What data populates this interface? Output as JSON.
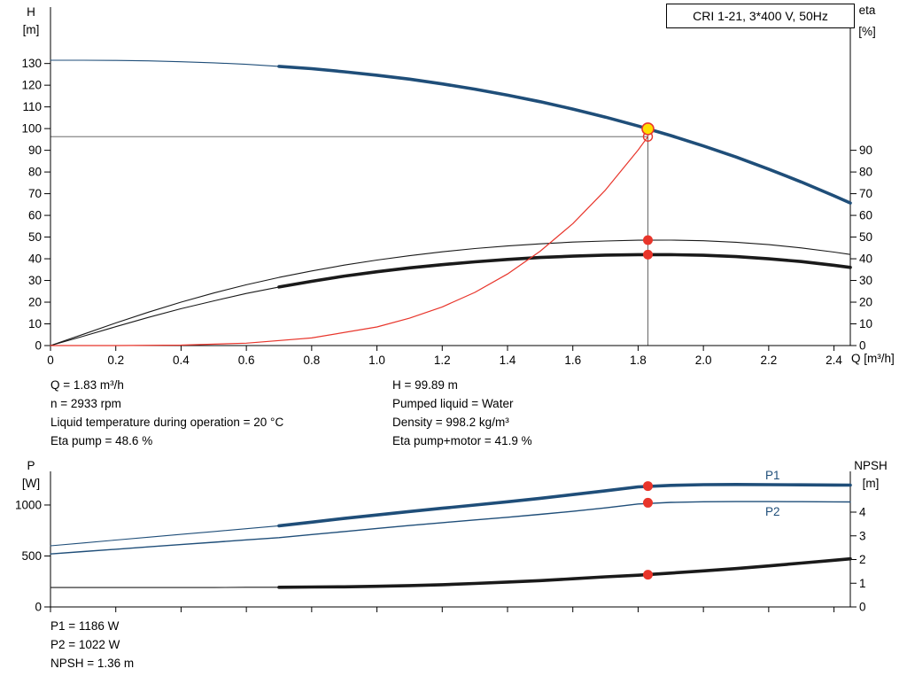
{
  "axis_labels": {
    "h": "H",
    "h_unit": "[m]",
    "eta": "eta",
    "eta_unit": "[%]",
    "q": "Q [m³/h]",
    "p": "P",
    "p_unit": "[W]",
    "npsh": "NPSH",
    "npsh_unit": "[m]"
  },
  "operating_point": {
    "q_label": "Q = 1.83 m³/h",
    "n_label": "n = 2933 rpm",
    "temp_label": "Liquid temperature during operation = 20 °C",
    "eta_pump_label": "Eta pump = 48.6 %",
    "h_label": "H = 99.89 m",
    "liquid_label": "Pumped liquid = Water",
    "density_label": "Density = 998.2 kg/m³",
    "eta_total_label": "Eta pump+motor = 41.9 %",
    "p1_label": "P1 = 1186 W",
    "p2_label": "P2 = 1022 W",
    "npsh_label": "NPSH = 1.36 m"
  },
  "duty_point": {
    "q": 1.83,
    "h": 99.89,
    "eta_pump": 48.6,
    "eta_total": 41.9,
    "p1": 1186,
    "p2": 1022,
    "npsh": 1.36,
    "n_rpm": 2933,
    "density": 998.2,
    "temp_c": 20,
    "liquid": "Water"
  },
  "chart_data": [
    {
      "type": "line",
      "name": "qh-eta-chart",
      "title": "CRI 1-21, 3*400 V, 50Hz",
      "xlabel": "Q [m³/h]",
      "ylabel_left": "H [m]",
      "ylabel_right": "eta [%]",
      "xlim": [
        0,
        2.45
      ],
      "ylim_left": [
        0,
        156
      ],
      "ylim_right": [
        0,
        156
      ],
      "grid": false,
      "x_ticks": [
        0,
        0.2,
        0.4,
        0.6,
        0.8,
        1.0,
        1.2,
        1.4,
        1.6,
        1.8,
        2.0,
        2.2,
        2.4
      ],
      "x_tick_labels": [
        "0",
        "0.2",
        "0.4",
        "0.6",
        "0.8",
        "1.0",
        "1.2",
        "1.4",
        "1.6",
        "1.8",
        "2.0",
        "2.2",
        "2.4"
      ],
      "y_ticks_left": [
        0,
        10,
        20,
        30,
        40,
        50,
        60,
        70,
        80,
        90,
        100,
        110,
        120,
        130
      ],
      "y_ticks_right": [
        0,
        10,
        20,
        30,
        40,
        50,
        60,
        70,
        80,
        90
      ],
      "series": [
        {
          "name": "head-curve-low-flow",
          "axis": "left",
          "color": "#1f4e79",
          "width": 1.1,
          "x": [
            0,
            0.1,
            0.2,
            0.3,
            0.4,
            0.5,
            0.6,
            0.7
          ],
          "y": [
            131.5,
            131.5,
            131.4,
            131.2,
            130.8,
            130.3,
            129.6,
            128.7
          ]
        },
        {
          "name": "head-curve",
          "axis": "left",
          "color": "#1f4e79",
          "width": 3.6,
          "x": [
            0.7,
            0.8,
            0.9,
            1,
            1.1,
            1.2,
            1.3,
            1.4,
            1.5,
            1.6,
            1.7,
            1.8,
            1.9,
            2,
            2.1,
            2.2,
            2.3,
            2.4,
            2.45
          ],
          "y": [
            128.7,
            127.6,
            126.2,
            124.6,
            122.8,
            120.6,
            118.2,
            115.4,
            112.4,
            109.0,
            105.3,
            101.2,
            96.8,
            92.0,
            86.9,
            81.3,
            75.4,
            69.0,
            65.7
          ]
        },
        {
          "name": "eta-pump-curve",
          "axis": "right",
          "color": "#1a1a1a",
          "width": 1.1,
          "x": [
            0,
            0.1,
            0.2,
            0.3,
            0.4,
            0.5,
            0.6,
            0.7,
            0.8,
            0.9,
            1,
            1.1,
            1.2,
            1.3,
            1.4,
            1.5,
            1.6,
            1.7,
            1.8,
            1.9,
            2,
            2.1,
            2.2,
            2.3,
            2.4,
            2.45
          ],
          "y": [
            0,
            5.2,
            10.4,
            15.4,
            20.0,
            24.2,
            28.0,
            31.4,
            34.4,
            37.1,
            39.4,
            41.4,
            43.2,
            44.7,
            45.9,
            46.9,
            47.7,
            48.2,
            48.55,
            48.6,
            48.3,
            47.6,
            46.5,
            45.0,
            43.1,
            42.0
          ]
        },
        {
          "name": "eta-pump-motor-low-flow",
          "axis": "right",
          "color": "#1a1a1a",
          "width": 1.1,
          "x": [
            0,
            0.1,
            0.2,
            0.3,
            0.4,
            0.5,
            0.6,
            0.7
          ],
          "y": [
            0,
            4.3,
            8.7,
            13.0,
            17.0,
            20.6,
            24.0,
            27.0
          ]
        },
        {
          "name": "eta-pump-motor-curve",
          "axis": "right",
          "color": "#1a1a1a",
          "width": 3.6,
          "x": [
            0.7,
            0.8,
            0.9,
            1,
            1.1,
            1.2,
            1.3,
            1.4,
            1.5,
            1.6,
            1.7,
            1.8,
            1.9,
            2,
            2.1,
            2.2,
            2.3,
            2.4,
            2.45
          ],
          "y": [
            27.0,
            29.6,
            32.0,
            34.0,
            35.8,
            37.3,
            38.6,
            39.7,
            40.6,
            41.2,
            41.7,
            41.88,
            41.9,
            41.6,
            41.0,
            40.0,
            38.7,
            37.0,
            36.0
          ]
        },
        {
          "name": "system-curve",
          "axis": "left",
          "color": "#e8352b",
          "width": 1.2,
          "x": [
            0,
            0.2,
            0.4,
            0.6,
            0.8,
            1.0,
            1.1,
            1.2,
            1.3,
            1.4,
            1.5,
            1.6,
            1.7,
            1.8,
            1.83
          ],
          "y": [
            0,
            0.01,
            0.22,
            1.11,
            3.52,
            8.58,
            12.6,
            17.8,
            24.5,
            33.0,
            43.5,
            56.2,
            71.7,
            90.1,
            96.3
          ]
        }
      ],
      "ref_lines": [
        {
          "type": "v",
          "x": 1.83,
          "y0": 0,
          "y1": 99.89,
          "axis": "left"
        },
        {
          "type": "h",
          "y": 96.3,
          "x0": 0,
          "x1": 1.83,
          "axis": "left"
        }
      ],
      "markers": [
        {
          "x": 1.83,
          "y": 96.3,
          "axis": "left",
          "style": "open-red"
        },
        {
          "x": 1.83,
          "y": 48.6,
          "axis": "right",
          "style": "red-dot"
        },
        {
          "x": 1.83,
          "y": 41.9,
          "axis": "right",
          "style": "red-dot"
        },
        {
          "x": 1.83,
          "y": 99.89,
          "axis": "left",
          "style": "duty"
        }
      ]
    },
    {
      "type": "line",
      "name": "power-npsh-chart",
      "title": "",
      "xlabel": "",
      "ylabel_left": "P [W]",
      "ylabel_right": "NPSH [m]",
      "xlim": [
        0,
        2.45
      ],
      "ylim_left": [
        0,
        1330
      ],
      "ylim_right": [
        0,
        5.72
      ],
      "grid": false,
      "x_ticks": [
        0,
        0.2,
        0.4,
        0.6,
        0.8,
        1.0,
        1.2,
        1.4,
        1.6,
        1.8,
        2.0,
        2.2,
        2.4
      ],
      "x_tick_labels": null,
      "y_ticks_left": [
        0,
        500,
        1000
      ],
      "y_ticks_right": [
        0,
        1,
        2,
        3,
        4
      ],
      "annotations": [
        {
          "text": "P1",
          "color": "#1f4e79"
        },
        {
          "text": "P2",
          "color": "#1f4e79"
        }
      ],
      "series": [
        {
          "name": "p1-curve-low-flow",
          "axis": "left",
          "color": "#1f4e79",
          "width": 1.1,
          "x": [
            0,
            0.1,
            0.2,
            0.3,
            0.4,
            0.5,
            0.6,
            0.7
          ],
          "y": [
            600,
            628,
            656,
            684,
            712,
            740,
            768,
            796
          ]
        },
        {
          "name": "p1-curve",
          "axis": "left",
          "color": "#1f4e79",
          "width": 3.6,
          "x": [
            0.7,
            0.8,
            0.9,
            1,
            1.1,
            1.2,
            1.3,
            1.4,
            1.5,
            1.6,
            1.7,
            1.8,
            1.9,
            2,
            2.1,
            2.2,
            2.3,
            2.4,
            2.45
          ],
          "y": [
            796,
            832,
            868,
            902,
            936,
            968,
            1000,
            1032,
            1066,
            1102,
            1140,
            1178,
            1193,
            1200,
            1201,
            1200,
            1198,
            1196,
            1195
          ]
        },
        {
          "name": "p2-curve",
          "axis": "left",
          "color": "#1f4e79",
          "width": 1.4,
          "x": [
            0,
            0.1,
            0.2,
            0.3,
            0.4,
            0.5,
            0.6,
            0.7,
            0.8,
            0.9,
            1,
            1.1,
            1.2,
            1.3,
            1.4,
            1.5,
            1.6,
            1.7,
            1.8,
            1.9,
            2,
            2.1,
            2.2,
            2.3,
            2.4,
            2.45
          ],
          "y": [
            520,
            543,
            566,
            589,
            612,
            635,
            658,
            680,
            710,
            740,
            770,
            799,
            827,
            854,
            880,
            908,
            938,
            972,
            1010,
            1026,
            1032,
            1034,
            1034,
            1033,
            1031,
            1030
          ]
        },
        {
          "name": "npsh-curve-low-flow",
          "axis": "right",
          "color": "#1a1a1a",
          "width": 1.1,
          "x": [
            0,
            0.1,
            0.2,
            0.3,
            0.4,
            0.5,
            0.6,
            0.7
          ],
          "y": [
            0.82,
            0.82,
            0.82,
            0.82,
            0.82,
            0.82,
            0.83,
            0.83
          ]
        },
        {
          "name": "npsh-curve",
          "axis": "right",
          "color": "#1a1a1a",
          "width": 3.6,
          "x": [
            0.7,
            0.8,
            0.9,
            1,
            1.1,
            1.2,
            1.3,
            1.4,
            1.5,
            1.6,
            1.7,
            1.8,
            1.9,
            2,
            2.1,
            2.2,
            2.3,
            2.4,
            2.45
          ],
          "y": [
            0.83,
            0.84,
            0.85,
            0.87,
            0.9,
            0.94,
            0.99,
            1.05,
            1.11,
            1.19,
            1.27,
            1.34,
            1.43,
            1.52,
            1.62,
            1.73,
            1.85,
            1.97,
            2.03
          ]
        }
      ],
      "ref_lines": [],
      "markers": [
        {
          "x": 1.83,
          "y": 1186,
          "axis": "left",
          "style": "red-dot"
        },
        {
          "x": 1.83,
          "y": 1022,
          "axis": "left",
          "style": "red-dot"
        },
        {
          "x": 1.83,
          "y": 1.36,
          "axis": "right",
          "style": "red-dot"
        }
      ]
    }
  ]
}
